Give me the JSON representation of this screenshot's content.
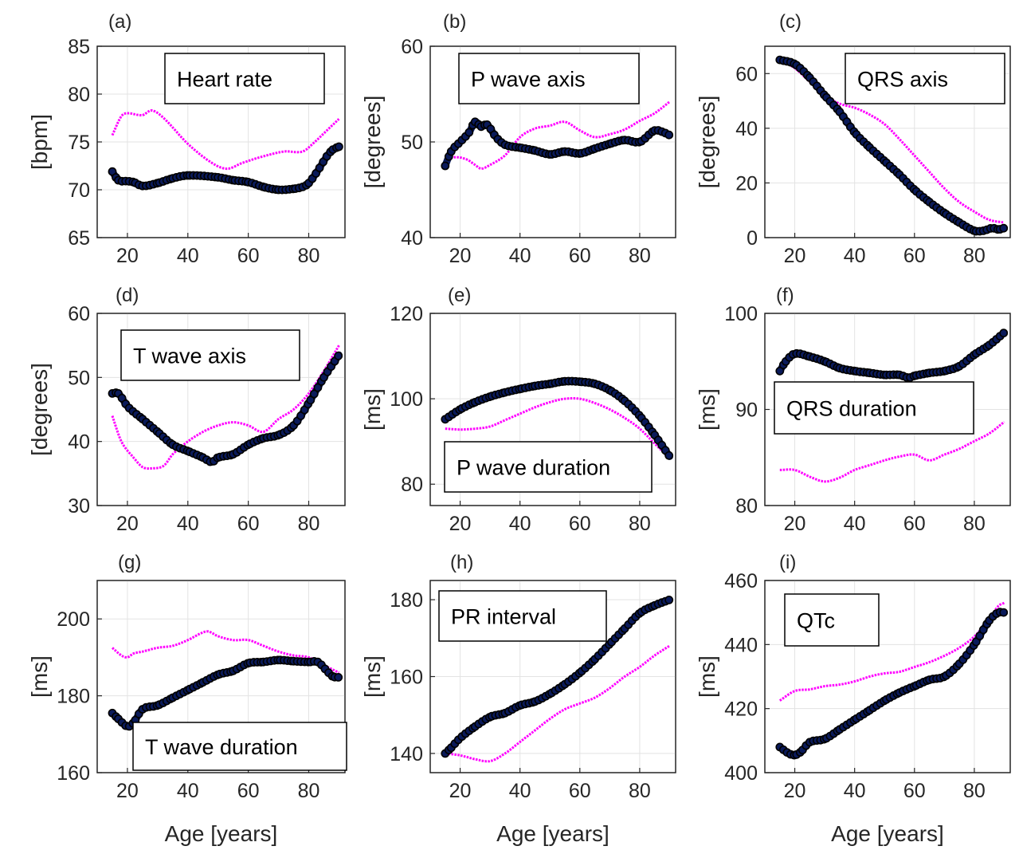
{
  "colors": {
    "series_pink": "#ff00ff",
    "series_black": "#000000",
    "series_black_fill": "#0a1a5a"
  },
  "chart_data": [
    {
      "type": "line",
      "panel_label": "(a)",
      "title": "Heart rate",
      "xlabel": "",
      "ylabel": "[bpm]",
      "xlim": [
        10,
        92
      ],
      "ylim": [
        65,
        85
      ],
      "xticks": [
        20,
        40,
        60,
        80
      ],
      "yticks": [
        65,
        70,
        75,
        80,
        85
      ],
      "grid": true,
      "legend_position": "top-center",
      "series": [
        {
          "color": "pink",
          "marker": "small",
          "x": [
            15,
            18,
            20,
            25,
            28,
            32,
            40,
            48,
            53,
            58,
            65,
            72,
            78,
            82,
            87,
            90
          ],
          "y": [
            75.7,
            77.7,
            78.0,
            77.8,
            78.3,
            77.5,
            74.8,
            72.8,
            72.2,
            72.8,
            73.5,
            74.0,
            74.0,
            75.0,
            76.5,
            77.4
          ]
        },
        {
          "color": "black",
          "marker": "large",
          "x": [
            15,
            17,
            20,
            22,
            25,
            30,
            35,
            40,
            50,
            55,
            60,
            65,
            70,
            75,
            78,
            80,
            83,
            86,
            88,
            90
          ],
          "y": [
            71.9,
            71.0,
            70.9,
            70.8,
            70.4,
            70.7,
            71.2,
            71.5,
            71.3,
            71.0,
            70.8,
            70.3,
            70.0,
            70.1,
            70.3,
            70.7,
            72.0,
            73.5,
            74.2,
            74.5
          ]
        }
      ]
    },
    {
      "type": "line",
      "panel_label": "(b)",
      "title": "P wave axis",
      "xlabel": "",
      "ylabel": "[degrees]",
      "xlim": [
        10,
        92
      ],
      "ylim": [
        40,
        60
      ],
      "xticks": [
        20,
        40,
        60,
        80
      ],
      "yticks": [
        40,
        50,
        60
      ],
      "grid": true,
      "legend_position": "top-center",
      "series": [
        {
          "color": "pink",
          "marker": "small",
          "x": [
            15,
            18,
            22,
            25,
            27,
            30,
            35,
            40,
            45,
            50,
            55,
            60,
            65,
            70,
            75,
            80,
            85,
            90
          ],
          "y": [
            48.0,
            48.4,
            48.2,
            47.6,
            47.2,
            47.6,
            48.6,
            50.5,
            51.4,
            51.7,
            52.1,
            51.2,
            50.5,
            50.8,
            51.3,
            52.2,
            53.0,
            54.2
          ]
        },
        {
          "color": "black",
          "marker": "large",
          "x": [
            15,
            17,
            20,
            23,
            25,
            27,
            29,
            32,
            35,
            40,
            45,
            50,
            55,
            60,
            65,
            70,
            75,
            80,
            85,
            88,
            90
          ],
          "y": [
            47.5,
            49.0,
            50.0,
            51.0,
            52.1,
            51.6,
            51.8,
            50.5,
            49.7,
            49.4,
            49.1,
            48.7,
            49.0,
            48.8,
            49.3,
            49.8,
            50.2,
            50.0,
            51.2,
            51.0,
            50.7
          ]
        }
      ]
    },
    {
      "type": "line",
      "panel_label": "(c)",
      "title": "QRS axis",
      "xlabel": "",
      "ylabel": "[degrees]",
      "xlim": [
        10,
        92
      ],
      "ylim": [
        0,
        70
      ],
      "xticks": [
        20,
        40,
        60,
        80
      ],
      "yticks": [
        0,
        20,
        40,
        60
      ],
      "grid": true,
      "legend_position": "top-right",
      "series": [
        {
          "color": "pink",
          "marker": "small",
          "x": [
            15,
            20,
            25,
            30,
            35,
            40,
            45,
            50,
            55,
            60,
            65,
            70,
            75,
            80,
            85,
            90
          ],
          "y": [
            65.0,
            62.0,
            57.0,
            52.0,
            49.0,
            47.5,
            45.0,
            41.5,
            36.0,
            30.0,
            24.0,
            18.0,
            13.0,
            9.5,
            6.5,
            5.5
          ]
        },
        {
          "color": "black",
          "marker": "large",
          "x": [
            15,
            20,
            25,
            30,
            35,
            40,
            45,
            50,
            55,
            60,
            65,
            70,
            75,
            80,
            83,
            86,
            88,
            90
          ],
          "y": [
            65.0,
            63.5,
            58.5,
            52.0,
            46.0,
            38.5,
            33.0,
            28.0,
            23.0,
            17.5,
            13.0,
            9.0,
            5.5,
            2.5,
            2.5,
            3.5,
            3.0,
            3.5
          ]
        }
      ]
    },
    {
      "type": "line",
      "panel_label": "(d)",
      "title": "T wave axis",
      "xlabel": "",
      "ylabel": "[degrees]",
      "xlim": [
        10,
        92
      ],
      "ylim": [
        30,
        60
      ],
      "xticks": [
        20,
        40,
        60,
        80
      ],
      "yticks": [
        30,
        40,
        50,
        60
      ],
      "grid": true,
      "legend_position": "top-center",
      "series": [
        {
          "color": "pink",
          "marker": "small",
          "x": [
            15,
            18,
            22,
            25,
            28,
            32,
            35,
            40,
            45,
            50,
            55,
            60,
            65,
            70,
            75,
            80,
            85,
            90
          ],
          "y": [
            44.0,
            40.0,
            37.5,
            36.0,
            35.8,
            36.2,
            38.0,
            40.0,
            41.5,
            42.5,
            43.0,
            42.5,
            41.5,
            43.5,
            45.0,
            47.5,
            51.0,
            55.0
          ]
        },
        {
          "color": "black",
          "marker": "large",
          "x": [
            15,
            17,
            20,
            25,
            30,
            35,
            40,
            45,
            48,
            50,
            55,
            60,
            65,
            70,
            75,
            80,
            85,
            90
          ],
          "y": [
            47.5,
            47.5,
            45.5,
            43.5,
            41.5,
            39.5,
            38.5,
            37.5,
            36.8,
            37.5,
            38.0,
            39.5,
            40.5,
            41.0,
            42.5,
            46.0,
            50.0,
            53.5
          ]
        }
      ]
    },
    {
      "type": "line",
      "panel_label": "(e)",
      "title": "P wave duration",
      "xlabel": "",
      "ylabel": "[ms]",
      "xlim": [
        10,
        92
      ],
      "ylim": [
        75,
        120
      ],
      "xticks": [
        20,
        40,
        60,
        80
      ],
      "yticks": [
        80,
        100,
        120
      ],
      "grid": true,
      "legend_position": "bottom-center",
      "series": [
        {
          "color": "pink",
          "marker": "small",
          "x": [
            15,
            20,
            25,
            30,
            35,
            40,
            45,
            50,
            55,
            60,
            65,
            70,
            75,
            80,
            85,
            90
          ],
          "y": [
            93.0,
            92.8,
            93.0,
            93.5,
            95.0,
            96.5,
            98.0,
            99.2,
            100.0,
            100.0,
            99.0,
            97.5,
            95.5,
            93.0,
            89.5,
            86.0
          ]
        },
        {
          "color": "black",
          "marker": "large",
          "x": [
            15,
            20,
            25,
            30,
            35,
            40,
            45,
            50,
            55,
            60,
            65,
            70,
            75,
            80,
            85,
            90
          ],
          "y": [
            95.2,
            97.5,
            99.2,
            100.5,
            101.5,
            102.3,
            103.0,
            103.5,
            104.1,
            104.0,
            103.5,
            102.0,
            99.5,
            96.0,
            91.5,
            86.5
          ]
        }
      ]
    },
    {
      "type": "line",
      "panel_label": "(f)",
      "title": "QRS duration",
      "xlabel": "",
      "ylabel": "[ms]",
      "xlim": [
        10,
        92
      ],
      "ylim": [
        80,
        100
      ],
      "xticks": [
        20,
        40,
        60,
        80
      ],
      "yticks": [
        80,
        90,
        100
      ],
      "grid": true,
      "legend_position": "middle-center",
      "series": [
        {
          "color": "pink",
          "marker": "small",
          "x": [
            15,
            20,
            25,
            30,
            35,
            40,
            45,
            50,
            55,
            60,
            65,
            70,
            75,
            80,
            85,
            90
          ],
          "y": [
            83.7,
            83.7,
            83.0,
            82.5,
            82.9,
            83.7,
            84.2,
            84.7,
            85.1,
            85.3,
            84.7,
            85.3,
            85.9,
            86.7,
            87.5,
            88.7
          ]
        },
        {
          "color": "black",
          "marker": "large",
          "x": [
            15,
            17,
            20,
            25,
            30,
            35,
            40,
            45,
            50,
            55,
            58,
            60,
            65,
            70,
            75,
            80,
            85,
            90
          ],
          "y": [
            94.0,
            95.0,
            95.8,
            95.5,
            95.0,
            94.3,
            94.0,
            93.8,
            93.6,
            93.6,
            93.3,
            93.5,
            93.8,
            94.0,
            94.5,
            95.7,
            96.7,
            98.0
          ]
        }
      ]
    },
    {
      "type": "line",
      "panel_label": "(g)",
      "title": "T wave duration",
      "xlabel": "Age [years]",
      "ylabel": "[ms]",
      "xlim": [
        10,
        92
      ],
      "ylim": [
        160,
        210
      ],
      "xticks": [
        20,
        40,
        60,
        80
      ],
      "yticks": [
        160,
        180,
        200
      ],
      "grid": true,
      "legend_position": "bottom-right",
      "series": [
        {
          "color": "pink",
          "marker": "small",
          "x": [
            15,
            18,
            20,
            22,
            25,
            30,
            35,
            40,
            45,
            47,
            50,
            55,
            60,
            65,
            70,
            75,
            80,
            85,
            90
          ],
          "y": [
            192.5,
            190.5,
            190.0,
            191.0,
            191.5,
            192.5,
            193.0,
            194.5,
            196.5,
            196.7,
            195.5,
            194.5,
            194.5,
            193.0,
            191.5,
            190.5,
            190.0,
            188.0,
            186.0
          ]
        },
        {
          "color": "black",
          "marker": "large",
          "x": [
            15,
            17,
            20,
            22,
            25,
            30,
            35,
            40,
            45,
            50,
            55,
            60,
            65,
            70,
            75,
            80,
            83,
            86,
            88,
            90
          ],
          "y": [
            175.5,
            174.0,
            172.0,
            173.0,
            176.5,
            177.5,
            179.5,
            181.5,
            183.5,
            185.5,
            186.5,
            188.5,
            188.8,
            189.3,
            189.0,
            188.8,
            188.8,
            186.5,
            185.0,
            184.8
          ]
        }
      ]
    },
    {
      "type": "line",
      "panel_label": "(h)",
      "title": "PR interval",
      "xlabel": "Age [years]",
      "ylabel": "[ms]",
      "xlim": [
        10,
        92
      ],
      "ylim": [
        135,
        185
      ],
      "xticks": [
        20,
        40,
        60,
        80
      ],
      "yticks": [
        140,
        160,
        180
      ],
      "grid": true,
      "legend_position": "top-left",
      "series": [
        {
          "color": "pink",
          "marker": "small",
          "x": [
            15,
            20,
            25,
            30,
            35,
            40,
            45,
            50,
            55,
            60,
            65,
            70,
            75,
            80,
            85,
            90
          ],
          "y": [
            140.0,
            139.5,
            138.5,
            138.0,
            140.0,
            143.0,
            146.0,
            149.0,
            151.5,
            153.0,
            154.5,
            157.0,
            160.0,
            162.5,
            165.5,
            168.0
          ]
        },
        {
          "color": "black",
          "marker": "large",
          "x": [
            15,
            17,
            20,
            25,
            30,
            35,
            40,
            45,
            50,
            55,
            60,
            65,
            70,
            75,
            80,
            85,
            90
          ],
          "y": [
            140.0,
            141.5,
            144.0,
            147.0,
            149.5,
            150.5,
            152.5,
            153.5,
            155.5,
            158.0,
            161.0,
            164.5,
            168.5,
            172.5,
            176.5,
            178.5,
            180.0
          ]
        }
      ]
    },
    {
      "type": "line",
      "panel_label": "(i)",
      "title": "QTc",
      "xlabel": "Age [years]",
      "ylabel": "[ms]",
      "xlim": [
        10,
        92
      ],
      "ylim": [
        400,
        460
      ],
      "xticks": [
        20,
        40,
        60,
        80
      ],
      "yticks": [
        400,
        420,
        440,
        460
      ],
      "grid": true,
      "legend_position": "top-left",
      "series": [
        {
          "color": "pink",
          "marker": "small",
          "x": [
            15,
            20,
            25,
            30,
            35,
            40,
            45,
            50,
            55,
            60,
            65,
            70,
            75,
            80,
            85,
            88,
            90
          ],
          "y": [
            422.5,
            425.5,
            426.0,
            427.0,
            427.5,
            428.5,
            430.0,
            431.0,
            431.5,
            433.0,
            434.5,
            436.5,
            439.0,
            442.5,
            448.0,
            452.0,
            453.0
          ]
        },
        {
          "color": "black",
          "marker": "large",
          "x": [
            15,
            18,
            20,
            22,
            25,
            30,
            35,
            40,
            45,
            50,
            55,
            60,
            65,
            70,
            75,
            80,
            85,
            88,
            90
          ],
          "y": [
            408.0,
            406.0,
            405.5,
            406.5,
            409.5,
            410.5,
            413.5,
            416.5,
            419.5,
            422.5,
            425.0,
            427.0,
            429.0,
            430.0,
            434.0,
            440.0,
            447.5,
            450.0,
            450.0
          ]
        }
      ]
    }
  ]
}
